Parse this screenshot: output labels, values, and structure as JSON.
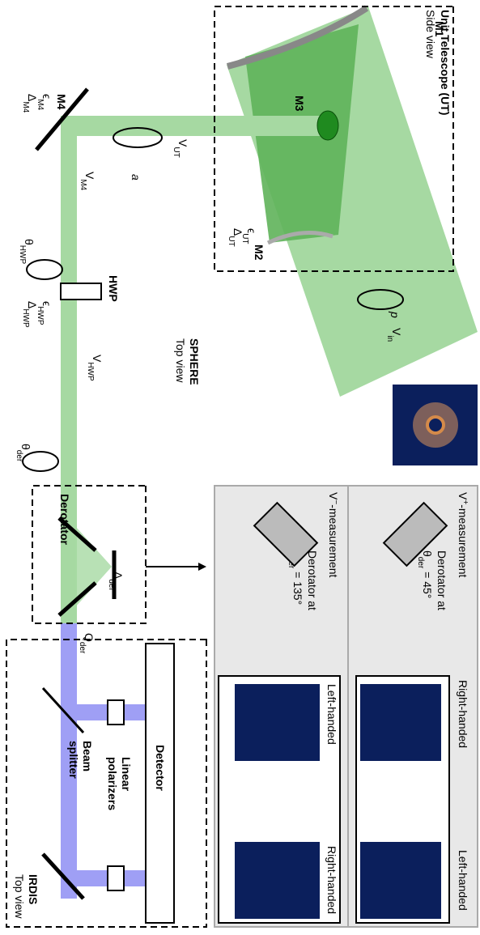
{
  "telescope": {
    "title": "Unit Telescope (UT)",
    "view": "Side view",
    "m1": "M1",
    "m2": "M2",
    "m3": "M3",
    "eps": {
      "base": "ϵ",
      "sub": "UT"
    },
    "delta": {
      "base": "Δ",
      "sub": "UT"
    },
    "v_in": {
      "base": "V",
      "sub": "in"
    },
    "p": "p"
  },
  "sphere": {
    "v_ut": {
      "base": "V",
      "sub": "UT"
    },
    "a": "a",
    "m4": "M4",
    "eps_m4": {
      "base": "ϵ",
      "sub": "M4"
    },
    "delta_m4": {
      "base": "Δ",
      "sub": "M4"
    },
    "v_m4": {
      "base": "V",
      "sub": "M4"
    },
    "hwp": "HWP",
    "theta_hwp": {
      "base": "θ",
      "sub": "HWP"
    },
    "eps_hwp": {
      "base": "ϵ",
      "sub": "HWP"
    },
    "delta_hwp": {
      "base": "Δ",
      "sub": "HWP"
    },
    "v_hwp": {
      "base": "V",
      "sub": "HWP"
    },
    "title": "SPHERE",
    "view": "Top view",
    "theta_der": {
      "base": "θ",
      "sub": "der"
    },
    "derotator": "Derotator",
    "delta_der": {
      "base": "Δ",
      "sub": "der"
    },
    "q_der": {
      "base": "Q",
      "sub": "der"
    }
  },
  "irdis": {
    "detector": "Detector",
    "polarizers": [
      "Linear",
      "polarizers"
    ],
    "splitter": [
      "Beam",
      "splitter"
    ],
    "title": "IRDIS",
    "view": "Top view"
  },
  "panel": {
    "plus": {
      "base": "V",
      "sup": "+",
      "rest": "-measurement",
      "note": "Derotator at",
      "angle": {
        "base": "θ",
        "sub": "der",
        "rest": " = 45°"
      },
      "images": [
        "Right-handed",
        "Left-handed"
      ]
    },
    "minus": {
      "base": "V",
      "sup": "−",
      "rest": "-measurement",
      "note": "Derotator at",
      "angle": {
        "base": "θ",
        "sub": "der",
        "rest": " = 135°"
      },
      "images": [
        "Left-handed",
        "Right-handed"
      ]
    }
  }
}
